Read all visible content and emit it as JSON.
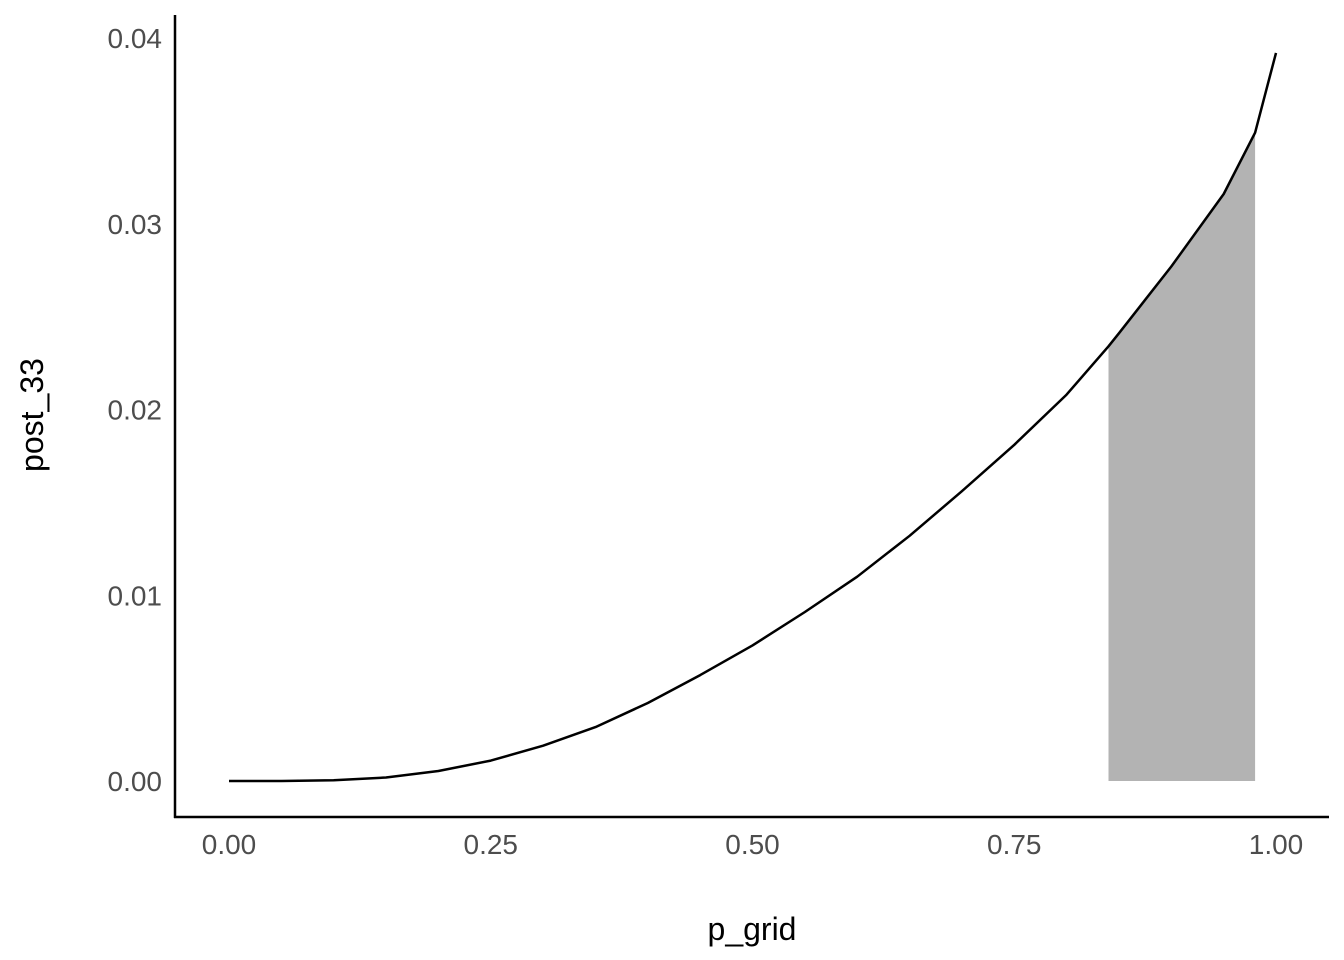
{
  "chart_data": {
    "type": "line",
    "title": "",
    "xlabel": "p_grid",
    "ylabel": "post_33",
    "xlim": [
      0.0,
      1.0
    ],
    "ylim": [
      0.0,
      0.04
    ],
    "x_ticks": [
      "0.00",
      "0.25",
      "0.50",
      "0.75",
      "1.00"
    ],
    "y_ticks": [
      "0.00",
      "0.01",
      "0.02",
      "0.03",
      "0.04"
    ],
    "grid": false,
    "legend": "none",
    "series": [
      {
        "x": [
          0.0,
          0.05,
          0.1,
          0.15,
          0.2,
          0.25,
          0.3,
          0.35,
          0.4,
          0.45,
          0.5,
          0.55,
          0.6,
          0.65,
          0.7,
          0.75,
          0.8,
          0.84,
          0.85,
          0.9,
          0.95,
          0.98,
          1.0
        ],
        "y": [
          0.0,
          1.3e-06,
          4e-05,
          0.00019,
          0.00054,
          0.0011,
          0.0019,
          0.0029,
          0.0042,
          0.0057,
          0.0073,
          0.0091,
          0.011,
          0.0132,
          0.0156,
          0.0181,
          0.0208,
          0.0234,
          0.0241,
          0.0277,
          0.0316,
          0.0349,
          0.0392
        ],
        "color": "#000000"
      }
    ],
    "shaded_region": {
      "x_from": 0.84,
      "x_to": 0.98,
      "color": "#b3b3b3"
    }
  }
}
